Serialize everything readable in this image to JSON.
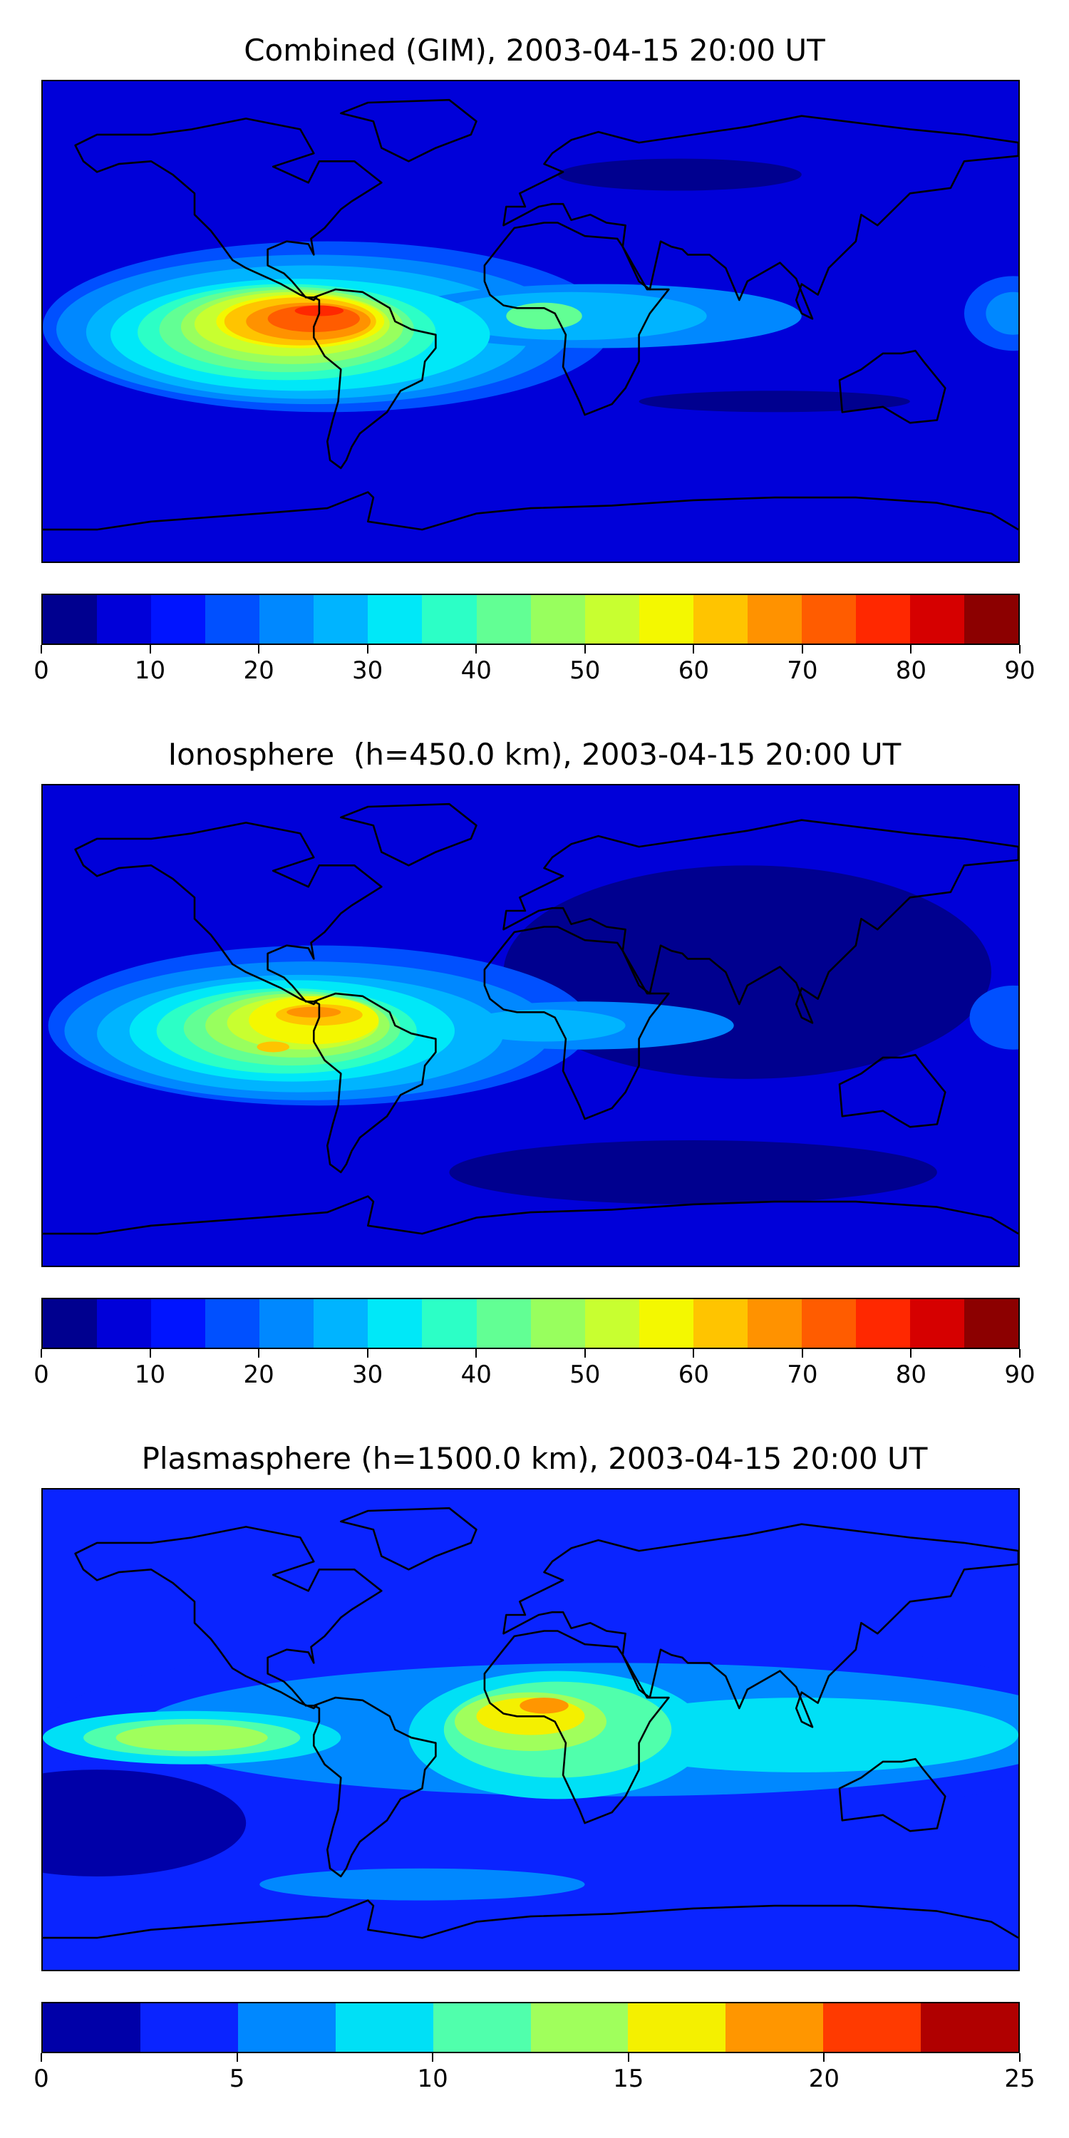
{
  "panels": [
    {
      "title": "Combined (GIM), 2003-04-15 20:00 UT",
      "colorbar": {
        "colors": [
          "#00008f",
          "#0000d9",
          "#0014ff",
          "#0050ff",
          "#0088ff",
          "#00b4ff",
          "#00e8f8",
          "#2cffc6",
          "#62ff94",
          "#98ff5e",
          "#c8ff30",
          "#f4f800",
          "#ffc400",
          "#ff9200",
          "#ff5c00",
          "#ff2800",
          "#d60000",
          "#8c0000"
        ],
        "ticks": [
          "0",
          "10",
          "20",
          "30",
          "40",
          "50",
          "60",
          "70",
          "80",
          "90"
        ]
      },
      "features": [
        {
          "color": "#0050ff",
          "lon": -75,
          "lat": -2,
          "rx": 105,
          "ry": 32
        },
        {
          "color": "#0088ff",
          "lon": -80,
          "lat": -3,
          "rx": 95,
          "ry": 28
        },
        {
          "color": "#00b4ff",
          "lon": -82,
          "lat": -4,
          "rx": 82,
          "ry": 25
        },
        {
          "color": "#0088ff",
          "lon": 25,
          "lat": 2,
          "rx": 75,
          "ry": 12
        },
        {
          "color": "#00b4ff",
          "lon": 15,
          "lat": 2,
          "rx": 50,
          "ry": 9
        },
        {
          "color": "#00e8f8",
          "lon": -85,
          "lat": -5,
          "rx": 70,
          "ry": 21
        },
        {
          "color": "#2cffc6",
          "lon": -90,
          "lat": -4,
          "rx": 55,
          "ry": 18
        },
        {
          "color": "#62ff94",
          "lon": -90,
          "lat": -3,
          "rx": 47,
          "ry": 16
        },
        {
          "color": "#62ff94",
          "lon": 5,
          "lat": 2,
          "rx": 14,
          "ry": 5
        },
        {
          "color": "#98ff5e",
          "lon": -88,
          "lat": -2,
          "rx": 41,
          "ry": 14
        },
        {
          "color": "#c8ff30",
          "lon": -88,
          "lat": -1,
          "rx": 36,
          "ry": 12
        },
        {
          "color": "#f4f800",
          "lon": -85,
          "lat": 0,
          "rx": 31,
          "ry": 10
        },
        {
          "color": "#ffc400",
          "lon": -85,
          "lat": 0,
          "rx": 28,
          "ry": 9
        },
        {
          "color": "#ff9200",
          "lon": -82,
          "lat": 0,
          "rx": 23,
          "ry": 7
        },
        {
          "color": "#ff5c00",
          "lon": -80,
          "lat": 1,
          "rx": 17,
          "ry": 5
        },
        {
          "color": "#ff2800",
          "lon": -78,
          "lat": 4,
          "rx": 9,
          "ry": 2
        },
        {
          "color": "#0050ff",
          "lon": 178,
          "lat": 3,
          "rx": 18,
          "ry": 14
        },
        {
          "color": "#0088ff",
          "lon": 178,
          "lat": 3,
          "rx": 10,
          "ry": 8
        },
        {
          "color": "#00008f",
          "lon": 55,
          "lat": 55,
          "rx": 45,
          "ry": 6
        },
        {
          "color": "#00008f",
          "lon": 90,
          "lat": -30,
          "rx": 50,
          "ry": 4
        }
      ]
    },
    {
      "title": "Ionosphere  (h=450.0 km), 2003-04-15 20:00 UT",
      "colorbar": {
        "colors": [
          "#00008f",
          "#0000d9",
          "#0014ff",
          "#0050ff",
          "#0088ff",
          "#00b4ff",
          "#00e8f8",
          "#2cffc6",
          "#62ff94",
          "#98ff5e",
          "#c8ff30",
          "#f4f800",
          "#ffc400",
          "#ff9200",
          "#ff5c00",
          "#ff2800",
          "#d60000",
          "#8c0000"
        ],
        "ticks": [
          "0",
          "10",
          "20",
          "30",
          "40",
          "50",
          "60",
          "70",
          "80",
          "90"
        ]
      },
      "features": [
        {
          "color": "#00008f",
          "lon": 80,
          "lat": 20,
          "rx": 90,
          "ry": 40
        },
        {
          "color": "#00008f",
          "lon": 60,
          "lat": -55,
          "rx": 90,
          "ry": 12
        },
        {
          "color": "#0050ff",
          "lon": -78,
          "lat": 0,
          "rx": 100,
          "ry": 30
        },
        {
          "color": "#0088ff",
          "lon": -82,
          "lat": -2,
          "rx": 90,
          "ry": 26
        },
        {
          "color": "#0088ff",
          "lon": 20,
          "lat": 0,
          "rx": 55,
          "ry": 9
        },
        {
          "color": "#00b4ff",
          "lon": -85,
          "lat": -3,
          "rx": 75,
          "ry": 22
        },
        {
          "color": "#00b4ff",
          "lon": 5,
          "lat": 0,
          "rx": 30,
          "ry": 6
        },
        {
          "color": "#00e8f8",
          "lon": -88,
          "lat": -2,
          "rx": 60,
          "ry": 19
        },
        {
          "color": "#2cffc6",
          "lon": -90,
          "lat": -2,
          "rx": 48,
          "ry": 16
        },
        {
          "color": "#62ff94",
          "lon": -88,
          "lat": -1,
          "rx": 40,
          "ry": 14
        },
        {
          "color": "#98ff5e",
          "lon": -86,
          "lat": 0,
          "rx": 34,
          "ry": 12
        },
        {
          "color": "#c8ff30",
          "lon": -84,
          "lat": 1,
          "rx": 28,
          "ry": 10
        },
        {
          "color": "#f4f800",
          "lon": -80,
          "lat": 2,
          "rx": 24,
          "ry": 9
        },
        {
          "color": "#ffc400",
          "lon": -78,
          "lat": 4,
          "rx": 16,
          "ry": 4
        },
        {
          "color": "#ff9200",
          "lon": -80,
          "lat": 5,
          "rx": 10,
          "ry": 2
        },
        {
          "color": "#ffc400",
          "lon": -95,
          "lat": -8,
          "rx": 6,
          "ry": 2
        },
        {
          "color": "#0050ff",
          "lon": 178,
          "lat": 3,
          "rx": 16,
          "ry": 12
        }
      ]
    },
    {
      "title": "Plasmasphere (h=1500.0 km), 2003-04-15 20:00 UT",
      "colorbar": {
        "colors": [
          "#0000a8",
          "#0a24ff",
          "#0088ff",
          "#00e0f6",
          "#50ffac",
          "#a0ff5c",
          "#f4f000",
          "#ff9600",
          "#ff3a00",
          "#b00000"
        ],
        "ticks": [
          "0",
          "5",
          "10",
          "15",
          "20",
          "25"
        ]
      },
      "features": [
        {
          "color": "#0a24ff",
          "lon": 20,
          "lat": 0,
          "rx": 200,
          "ry": 35
        },
        {
          "color": "#0088ff",
          "lon": 30,
          "lat": 0,
          "rx": 175,
          "ry": 25
        },
        {
          "color": "#0088ff",
          "lon": -40,
          "lat": -58,
          "rx": 60,
          "ry": 6
        },
        {
          "color": "#00e0f6",
          "lon": -125,
          "lat": -3,
          "rx": 55,
          "ry": 10
        },
        {
          "color": "#00e0f6",
          "lon": 10,
          "lat": -2,
          "rx": 55,
          "ry": 24
        },
        {
          "color": "#00e0f6",
          "lon": 100,
          "lat": -2,
          "rx": 80,
          "ry": 14
        },
        {
          "color": "#50ffac",
          "lon": -125,
          "lat": -3,
          "rx": 40,
          "ry": 7
        },
        {
          "color": "#50ffac",
          "lon": 10,
          "lat": 0,
          "rx": 42,
          "ry": 18
        },
        {
          "color": "#a0ff5c",
          "lon": -125,
          "lat": -3,
          "rx": 28,
          "ry": 5
        },
        {
          "color": "#a0ff5c",
          "lon": 0,
          "lat": 3,
          "rx": 28,
          "ry": 11
        },
        {
          "color": "#f4f000",
          "lon": 0,
          "lat": 5,
          "rx": 20,
          "ry": 7
        },
        {
          "color": "#ff9600",
          "lon": 5,
          "lat": 9,
          "rx": 9,
          "ry": 3
        },
        {
          "color": "#0000a8",
          "lon": -160,
          "lat": -35,
          "rx": 55,
          "ry": 20
        }
      ]
    }
  ]
}
